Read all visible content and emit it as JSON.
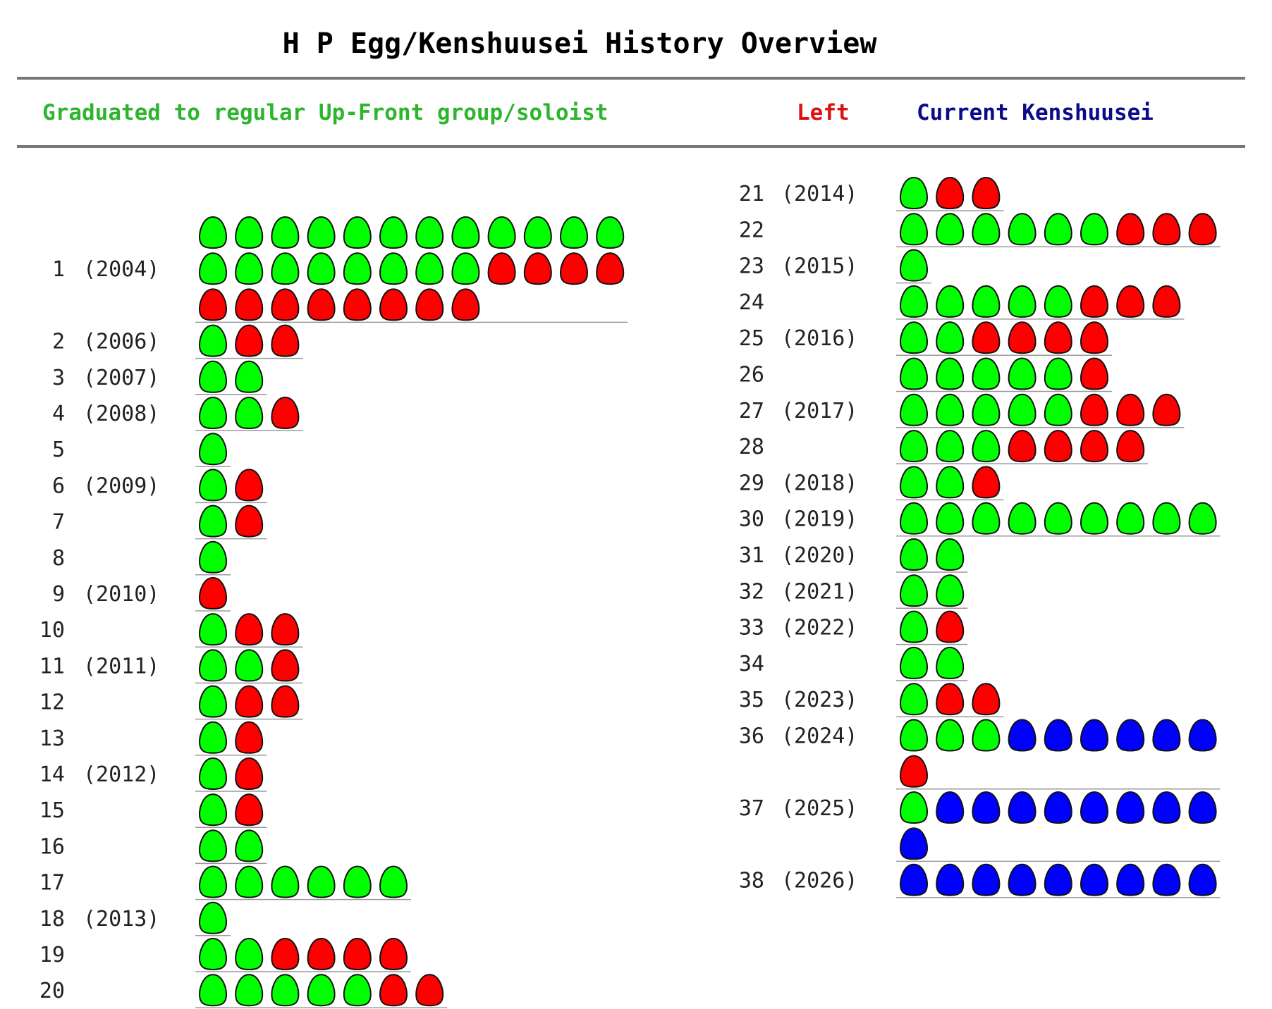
{
  "title": "H P Egg/Kenshuusei History Overview",
  "legend": [
    {
      "label": "Graduated to regular Up-Front group/soloist",
      "color": "#2db52d",
      "status": "graduated"
    },
    {
      "label": "Left",
      "color": "#dd1111",
      "status": "left"
    },
    {
      "label": "Current Kenshuusei",
      "color": "#0a0a8a",
      "status": "current"
    }
  ],
  "colors": {
    "graduated": "#00ff00",
    "left": "#ff0000",
    "current": "#0000ff",
    "outline": "#111111",
    "divider": "#777777",
    "row_line": "#9a9a9a"
  },
  "chart_data": {
    "type": "table",
    "codes": {
      "g": "graduated",
      "l": "left",
      "c": "current"
    },
    "generations": [
      {
        "gen": "1",
        "year": "(2004)",
        "members": "ggggggggggggggggggggllllllllllll"
      },
      {
        "gen": "2",
        "year": "(2006)",
        "members": "gll"
      },
      {
        "gen": "3",
        "year": "(2007)",
        "members": "gg"
      },
      {
        "gen": "4",
        "year": "(2008)",
        "members": "ggl"
      },
      {
        "gen": "5",
        "year": "",
        "members": "g"
      },
      {
        "gen": "6",
        "year": "(2009)",
        "members": "gl"
      },
      {
        "gen": "7",
        "year": "",
        "members": "gl"
      },
      {
        "gen": "8",
        "year": "",
        "members": "g"
      },
      {
        "gen": "9",
        "year": "(2010)",
        "members": "l"
      },
      {
        "gen": "10",
        "year": "",
        "members": "gll"
      },
      {
        "gen": "11",
        "year": "(2011)",
        "members": "ggl"
      },
      {
        "gen": "12",
        "year": "",
        "members": "gll"
      },
      {
        "gen": "13",
        "year": "",
        "members": "gl"
      },
      {
        "gen": "14",
        "year": "(2012)",
        "members": "gl"
      },
      {
        "gen": "15",
        "year": "",
        "members": "gl"
      },
      {
        "gen": "16",
        "year": "",
        "members": "gg"
      },
      {
        "gen": "17",
        "year": "",
        "members": "gggggg"
      },
      {
        "gen": "18",
        "year": "(2013)",
        "members": "g"
      },
      {
        "gen": "19",
        "year": "",
        "members": "ggllll"
      },
      {
        "gen": "20",
        "year": "",
        "members": "gggggll"
      },
      {
        "gen": "21",
        "year": "(2014)",
        "members": "gll"
      },
      {
        "gen": "22",
        "year": "",
        "members": "ggggggll l"
      },
      {
        "gen": "23",
        "year": "(2015)",
        "members": "g"
      },
      {
        "gen": "24",
        "year": "",
        "members": "ggggglll"
      },
      {
        "gen": "25",
        "year": "(2016)",
        "members": "ggllll"
      },
      {
        "gen": "26",
        "year": "",
        "members": "gggggl"
      },
      {
        "gen": "27",
        "year": "(2017)",
        "members": "ggggglll"
      },
      {
        "gen": "28",
        "year": "",
        "members": "gggllll"
      },
      {
        "gen": "29",
        "year": "(2018)",
        "members": "ggl"
      },
      {
        "gen": "30",
        "year": "(2019)",
        "members": "ggggggggg"
      },
      {
        "gen": "31",
        "year": "(2020)",
        "members": "gg"
      },
      {
        "gen": "32",
        "year": "(2021)",
        "members": "gg"
      },
      {
        "gen": "33",
        "year": "(2022)",
        "members": "gl"
      },
      {
        "gen": "34",
        "year": "",
        "members": "gg"
      },
      {
        "gen": "35",
        "year": "(2023)",
        "members": "gll"
      },
      {
        "gen": "36",
        "year": "(2024)",
        "members": "gggccccccl"
      },
      {
        "gen": "37",
        "year": "(2025)",
        "members": "gccccccccc"
      },
      {
        "gen": "38",
        "year": "(2026)",
        "members": "ccccccccc"
      }
    ]
  }
}
